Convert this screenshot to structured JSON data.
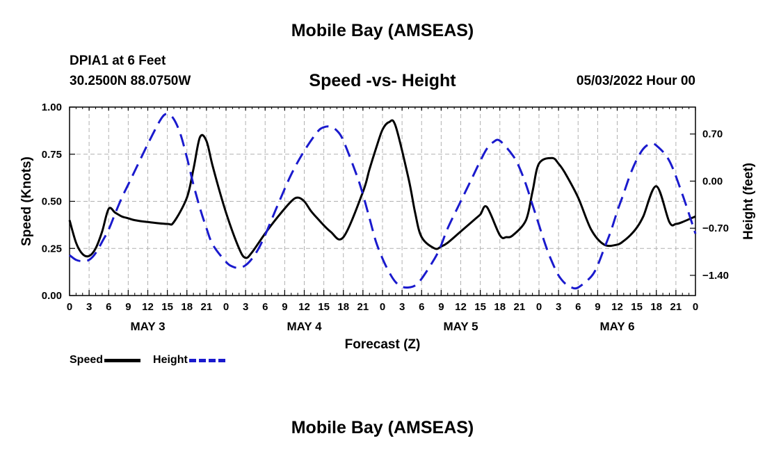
{
  "header": {
    "title": "Mobile Bay (AMSEAS)",
    "station": "DPIA1 at 6 Feet",
    "coords": "30.2500N  88.0750W",
    "subtitle": "Speed -vs- Height",
    "datetime": "05/03/2022 Hour 00"
  },
  "footer": {
    "title": "Mobile Bay (AMSEAS)"
  },
  "legend": {
    "speed": "Speed",
    "height": "Height"
  },
  "colors": {
    "speed": "#000000",
    "height": "#1a1acd",
    "grid": "#b0b0b0"
  },
  "chart_data": {
    "type": "line",
    "title": "Speed -vs- Height",
    "xlabel": "Forecast (Z)",
    "ylabel": "Speed (Knots)",
    "y2label": "Height (feet)",
    "xlim": [
      0,
      96
    ],
    "ylim": [
      0,
      1.0
    ],
    "y2lim": [
      -1.7,
      1.1
    ],
    "x_ticks": [
      0,
      3,
      6,
      9,
      12,
      15,
      18,
      21,
      24,
      27,
      30,
      33,
      36,
      39,
      42,
      45,
      48,
      51,
      54,
      57,
      60,
      63,
      66,
      69,
      72,
      75,
      78,
      81,
      84,
      87,
      90,
      93,
      96
    ],
    "x_tick_labels": [
      "0",
      "3",
      "6",
      "9",
      "12",
      "15",
      "18",
      "21",
      "0",
      "3",
      "6",
      "9",
      "12",
      "15",
      "18",
      "21",
      "0",
      "3",
      "6",
      "9",
      "12",
      "15",
      "18",
      "21",
      "0",
      "3",
      "6",
      "9",
      "12",
      "15",
      "18",
      "21",
      "0"
    ],
    "day_labels": [
      {
        "x": 12,
        "label": "MAY 3"
      },
      {
        "x": 36,
        "label": "MAY 4"
      },
      {
        "x": 60,
        "label": "MAY 5"
      },
      {
        "x": 84,
        "label": "MAY 6"
      }
    ],
    "y_ticks": [
      0,
      0.25,
      0.5,
      0.75,
      1.0
    ],
    "y_tick_labels": [
      "0.00",
      "0.25",
      "0.50",
      "0.75",
      "1.00"
    ],
    "y2_ticks": [
      0.7,
      0,
      -0.7,
      -1.4
    ],
    "y2_tick_labels": [
      "0.70",
      "0.00",
      "−0.70",
      "−1.40"
    ],
    "series": [
      {
        "name": "Speed",
        "axis": "left",
        "x": [
          0,
          1,
          2,
          3,
          4,
          5,
          6,
          7,
          8,
          9,
          10,
          12,
          15,
          16,
          18,
          19,
          20,
          21,
          22,
          24,
          26,
          27,
          28,
          30,
          32,
          34,
          35,
          36,
          37,
          38,
          40,
          42,
          45,
          46,
          47,
          48,
          49,
          50,
          52,
          53,
          54,
          56,
          57,
          58,
          60,
          62,
          63,
          64,
          66,
          67,
          68,
          70,
          71,
          72,
          74,
          75,
          76,
          78,
          80,
          82,
          84,
          85,
          86,
          87,
          88,
          90,
          92,
          93,
          94,
          96
        ],
        "values": [
          0.4,
          0.28,
          0.22,
          0.21,
          0.25,
          0.34,
          0.46,
          0.44,
          0.42,
          0.41,
          0.4,
          0.39,
          0.38,
          0.39,
          0.52,
          0.67,
          0.84,
          0.82,
          0.68,
          0.44,
          0.25,
          0.2,
          0.23,
          0.33,
          0.42,
          0.5,
          0.52,
          0.5,
          0.45,
          0.41,
          0.34,
          0.31,
          0.55,
          0.67,
          0.78,
          0.88,
          0.92,
          0.9,
          0.62,
          0.44,
          0.31,
          0.25,
          0.26,
          0.28,
          0.34,
          0.4,
          0.43,
          0.47,
          0.32,
          0.31,
          0.32,
          0.4,
          0.55,
          0.7,
          0.73,
          0.7,
          0.65,
          0.52,
          0.35,
          0.27,
          0.27,
          0.29,
          0.32,
          0.36,
          0.42,
          0.58,
          0.39,
          0.38,
          0.39,
          0.42
        ]
      },
      {
        "name": "Height",
        "axis": "right",
        "x": [
          0,
          1,
          2,
          3,
          4,
          5,
          6,
          7,
          8,
          9,
          10,
          12,
          14,
          15,
          16,
          17,
          18,
          19,
          20,
          21,
          22,
          24,
          25,
          26,
          27,
          28,
          29,
          30,
          31,
          32,
          34,
          36,
          38,
          39,
          40,
          41,
          42,
          44,
          45,
          46,
          47,
          48,
          49,
          50,
          51,
          52,
          53,
          54,
          56,
          57,
          58,
          60,
          62,
          63,
          64,
          65,
          66,
          68,
          69,
          70,
          71,
          72,
          73,
          74,
          75,
          76,
          77,
          78,
          80,
          81,
          82,
          83,
          84,
          85,
          86,
          87,
          88,
          89,
          90,
          92,
          94,
          96
        ],
        "values": [
          -1.1,
          -1.17,
          -1.19,
          -1.17,
          -1.07,
          -0.9,
          -0.72,
          -0.48,
          -0.25,
          -0.05,
          0.15,
          0.55,
          0.92,
          1.0,
          0.92,
          0.7,
          0.35,
          -0.05,
          -0.4,
          -0.7,
          -0.95,
          -1.2,
          -1.27,
          -1.29,
          -1.25,
          -1.15,
          -1.0,
          -0.8,
          -0.57,
          -0.34,
          0.1,
          0.45,
          0.73,
          0.8,
          0.81,
          0.75,
          0.6,
          0.1,
          -0.2,
          -0.55,
          -0.9,
          -1.15,
          -1.35,
          -1.5,
          -1.57,
          -1.58,
          -1.55,
          -1.45,
          -1.15,
          -0.95,
          -0.7,
          -0.3,
          0.1,
          0.3,
          0.48,
          0.58,
          0.6,
          0.38,
          0.2,
          -0.05,
          -0.35,
          -0.65,
          -0.95,
          -1.2,
          -1.4,
          -1.52,
          -1.58,
          -1.58,
          -1.42,
          -1.25,
          -1.0,
          -0.75,
          -0.45,
          -0.18,
          0.1,
          0.32,
          0.48,
          0.55,
          0.53,
          0.3,
          -0.2,
          -0.78
        ]
      }
    ]
  }
}
